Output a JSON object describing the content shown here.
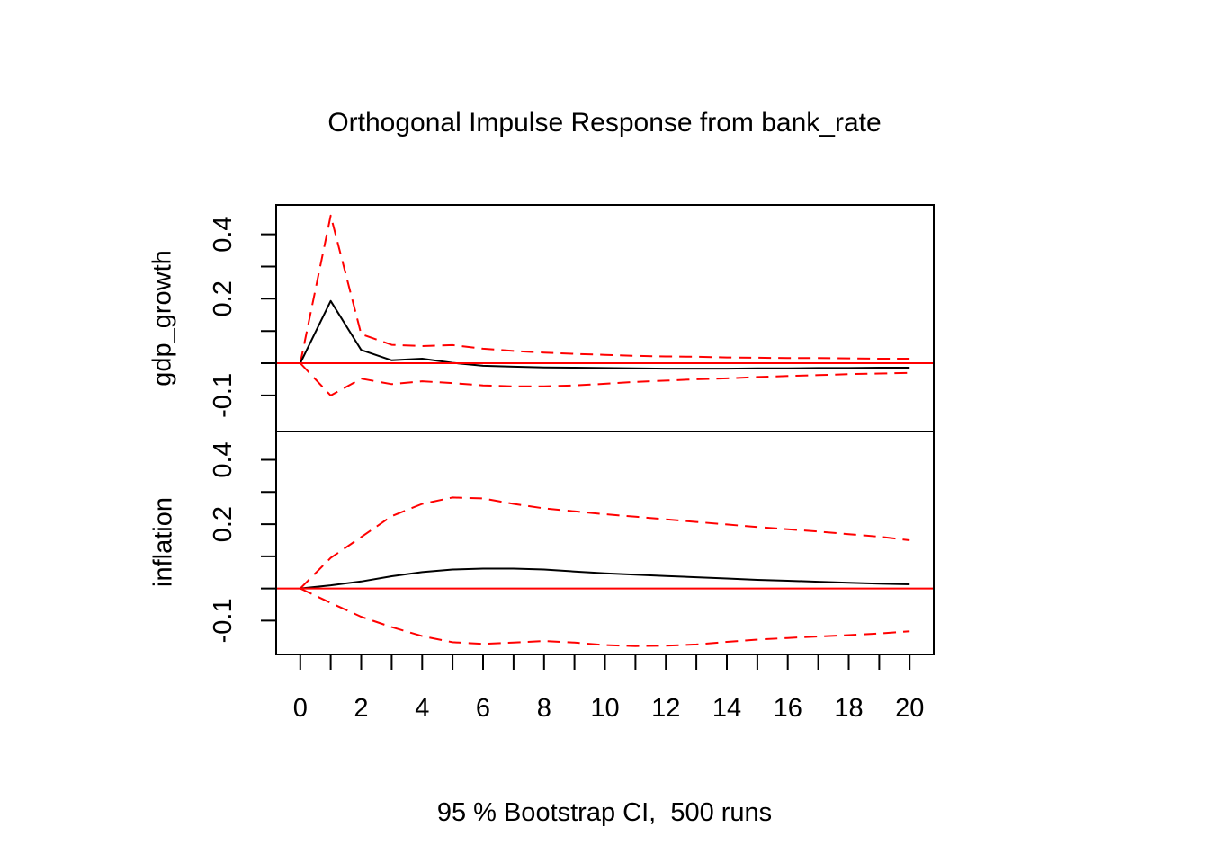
{
  "title": "Orthogonal Impulse Response from bank_rate",
  "caption": "95 % Bootstrap CI,  500 runs",
  "colors": {
    "background": "#ffffff",
    "frame": "#000000",
    "irf_line": "#000000",
    "ci_line": "#ff0000",
    "zero_line": "#ff0000"
  },
  "x_axis": {
    "xlim": [
      -0.79,
      20.79
    ],
    "tick_values": [
      0,
      1,
      2,
      3,
      4,
      5,
      6,
      7,
      8,
      9,
      10,
      11,
      12,
      13,
      14,
      15,
      16,
      17,
      18,
      19,
      20
    ],
    "label_values": [
      0,
      2,
      4,
      6,
      8,
      10,
      12,
      14,
      16,
      18,
      20
    ],
    "labels": [
      "0",
      "2",
      "4",
      "6",
      "8",
      "10",
      "12",
      "14",
      "16",
      "18",
      "20"
    ]
  },
  "chart_data": [
    {
      "type": "line",
      "panel_label": "gdp_growth",
      "x": [
        0,
        1,
        2,
        3,
        4,
        5,
        6,
        7,
        8,
        9,
        10,
        11,
        12,
        13,
        14,
        15,
        16,
        17,
        18,
        19,
        20
      ],
      "ylim": [
        -0.212,
        0.491
      ],
      "ytick_values": [
        -0.1,
        0,
        0.1,
        0.2,
        0.3,
        0.4
      ],
      "ytick_labels": [
        {
          "value": 0.4,
          "label": "0.4"
        },
        {
          "value": 0.2,
          "label": "0.2"
        },
        {
          "value": -0.1,
          "label": "-0.1"
        }
      ],
      "zero_line": 0,
      "series": [
        {
          "name": "irf",
          "line": "solid",
          "color_key": "irf_line",
          "values": [
            0,
            0.193,
            0.041,
            0.009,
            0.014,
            0.001,
            -0.008,
            -0.011,
            -0.013,
            -0.014,
            -0.015,
            -0.016,
            -0.017,
            -0.017,
            -0.017,
            -0.016,
            -0.016,
            -0.015,
            -0.015,
            -0.014,
            -0.014
          ]
        },
        {
          "name": "ci_upper",
          "line": "dashed",
          "color_key": "ci_line",
          "values": [
            0,
            0.458,
            0.09,
            0.057,
            0.053,
            0.056,
            0.045,
            0.038,
            0.033,
            0.029,
            0.026,
            0.023,
            0.021,
            0.02,
            0.018,
            0.017,
            0.016,
            0.016,
            0.015,
            0.014,
            0.014
          ]
        },
        {
          "name": "ci_lower",
          "line": "dashed",
          "color_key": "ci_line",
          "values": [
            0,
            -0.1,
            -0.048,
            -0.065,
            -0.056,
            -0.062,
            -0.069,
            -0.072,
            -0.072,
            -0.069,
            -0.064,
            -0.058,
            -0.054,
            -0.05,
            -0.047,
            -0.043,
            -0.04,
            -0.037,
            -0.034,
            -0.032,
            -0.03
          ]
        }
      ]
    },
    {
      "type": "line",
      "panel_label": "inflation",
      "x": [
        0,
        1,
        2,
        3,
        4,
        5,
        6,
        7,
        8,
        9,
        10,
        11,
        12,
        13,
        14,
        15,
        16,
        17,
        18,
        19,
        20
      ],
      "ylim": [
        -0.205,
        0.488
      ],
      "ytick_values": [
        -0.1,
        0,
        0.1,
        0.2,
        0.3,
        0.4
      ],
      "ytick_labels": [
        {
          "value": 0.4,
          "label": "0.4"
        },
        {
          "value": 0.2,
          "label": "0.2"
        },
        {
          "value": -0.1,
          "label": "-0.1"
        }
      ],
      "zero_line": 0,
      "series": [
        {
          "name": "irf",
          "line": "solid",
          "color_key": "irf_line",
          "values": [
            0,
            0.01,
            0.022,
            0.038,
            0.051,
            0.059,
            0.062,
            0.062,
            0.059,
            0.053,
            0.047,
            0.043,
            0.039,
            0.035,
            0.031,
            0.027,
            0.024,
            0.021,
            0.018,
            0.015,
            0.013
          ]
        },
        {
          "name": "ci_upper",
          "line": "dashed",
          "color_key": "ci_line",
          "values": [
            0,
            0.095,
            0.16,
            0.225,
            0.263,
            0.283,
            0.28,
            0.263,
            0.249,
            0.24,
            0.231,
            0.223,
            0.215,
            0.207,
            0.199,
            0.191,
            0.184,
            0.177,
            0.169,
            0.161,
            0.15
          ]
        },
        {
          "name": "ci_lower",
          "line": "dashed",
          "color_key": "ci_line",
          "values": [
            0,
            -0.045,
            -0.088,
            -0.12,
            -0.148,
            -0.167,
            -0.172,
            -0.168,
            -0.163,
            -0.168,
            -0.176,
            -0.179,
            -0.178,
            -0.174,
            -0.166,
            -0.159,
            -0.154,
            -0.149,
            -0.145,
            -0.14,
            -0.133
          ]
        }
      ]
    }
  ]
}
